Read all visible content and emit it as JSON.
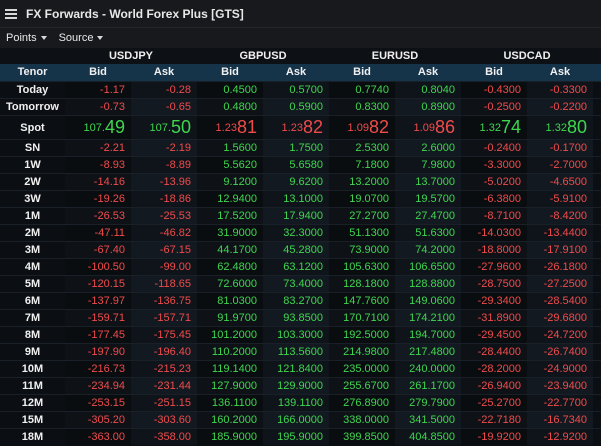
{
  "window": {
    "title": "FX Forwards - World Forex Plus [GTS]"
  },
  "menu": {
    "points_label": "Points",
    "source_label": "Source"
  },
  "pairs": [
    "USDJPY",
    "GBPUSD",
    "EURUSD",
    "USDCAD"
  ],
  "subheader": {
    "tenor": "Tenor",
    "bid": "Bid",
    "ask": "Ask"
  },
  "colors": {
    "positive": "#3fd64f",
    "negative": "#f04b4b",
    "header_bg": "#15344a"
  },
  "spot": {
    "tenor": "Spot",
    "values": [
      {
        "pre": "107.",
        "big": "49"
      },
      {
        "pre": "107.",
        "big": "50"
      },
      {
        "pre": "1.23",
        "big": "81"
      },
      {
        "pre": "1.23",
        "big": "82"
      },
      {
        "pre": "1.09",
        "big": "82"
      },
      {
        "pre": "1.09",
        "big": "86"
      },
      {
        "pre": "1.32",
        "big": "74"
      },
      {
        "pre": "1.32",
        "big": "80"
      }
    ],
    "colors": [
      "pos",
      "pos",
      "neg",
      "neg",
      "neg",
      "neg",
      "pos",
      "pos"
    ]
  },
  "rows": [
    {
      "tenor": "Today",
      "values": [
        "-1.17",
        "-0.28",
        "0.4500",
        "0.5700",
        "0.7740",
        "0.8040",
        "-0.4300",
        "-0.3300"
      ]
    },
    {
      "tenor": "Tomorrow",
      "values": [
        "-0.73",
        "-0.65",
        "0.4800",
        "0.5900",
        "0.8300",
        "0.8900",
        "-0.2500",
        "-0.2200"
      ]
    },
    {
      "tenor": "SN",
      "values": [
        "-2.21",
        "-2.19",
        "1.5600",
        "1.7500",
        "2.5300",
        "2.6000",
        "-0.2400",
        "-0.1700"
      ]
    },
    {
      "tenor": "1W",
      "values": [
        "-8.93",
        "-8.89",
        "5.5620",
        "5.6580",
        "7.1800",
        "7.9800",
        "-3.3000",
        "-2.7000"
      ]
    },
    {
      "tenor": "2W",
      "values": [
        "-14.16",
        "-13.96",
        "9.1200",
        "9.6200",
        "13.2000",
        "13.7000",
        "-5.0200",
        "-4.6500"
      ]
    },
    {
      "tenor": "3W",
      "values": [
        "-19.26",
        "-18.86",
        "12.9400",
        "13.1000",
        "19.0700",
        "19.5700",
        "-6.3800",
        "-5.9100"
      ]
    },
    {
      "tenor": "1M",
      "values": [
        "-26.53",
        "-25.53",
        "17.5200",
        "17.9400",
        "27.2700",
        "27.4700",
        "-8.7100",
        "-8.4200"
      ]
    },
    {
      "tenor": "2M",
      "values": [
        "-47.11",
        "-46.82",
        "31.9000",
        "32.3000",
        "51.1300",
        "51.6300",
        "-14.0300",
        "-13.4400"
      ]
    },
    {
      "tenor": "3M",
      "values": [
        "-67.40",
        "-67.15",
        "44.1700",
        "45.2800",
        "73.9000",
        "74.2000",
        "-18.8000",
        "-17.9100"
      ]
    },
    {
      "tenor": "4M",
      "values": [
        "-100.50",
        "-99.00",
        "62.4800",
        "63.1200",
        "105.6300",
        "106.6500",
        "-27.9600",
        "-26.1800"
      ]
    },
    {
      "tenor": "5M",
      "values": [
        "-120.15",
        "-118.65",
        "72.6000",
        "73.4000",
        "128.1800",
        "128.8800",
        "-28.7500",
        "-27.2500"
      ]
    },
    {
      "tenor": "6M",
      "values": [
        "-137.97",
        "-136.75",
        "81.0300",
        "83.2700",
        "147.7600",
        "149.0600",
        "-29.3400",
        "-28.5400"
      ]
    },
    {
      "tenor": "7M",
      "values": [
        "-159.71",
        "-157.71",
        "91.9700",
        "93.8500",
        "170.7100",
        "174.2100",
        "-31.8900",
        "-29.6800"
      ]
    },
    {
      "tenor": "8M",
      "values": [
        "-177.45",
        "-175.45",
        "101.2000",
        "103.3000",
        "192.5000",
        "194.7000",
        "-29.4500",
        "-24.7200"
      ]
    },
    {
      "tenor": "9M",
      "values": [
        "-197.90",
        "-196.40",
        "110.2000",
        "113.5600",
        "214.9800",
        "217.4800",
        "-28.4400",
        "-26.7400"
      ]
    },
    {
      "tenor": "10M",
      "values": [
        "-216.73",
        "-215.23",
        "119.1400",
        "121.8400",
        "235.0000",
        "240.0000",
        "-28.2000",
        "-24.9000"
      ]
    },
    {
      "tenor": "11M",
      "values": [
        "-234.94",
        "-231.44",
        "127.9000",
        "129.9000",
        "255.6700",
        "261.1700",
        "-26.9400",
        "-23.9400"
      ]
    },
    {
      "tenor": "12M",
      "values": [
        "-253.15",
        "-251.15",
        "136.1100",
        "139.1100",
        "276.8900",
        "279.7900",
        "-25.2700",
        "-22.7700"
      ]
    },
    {
      "tenor": "15M",
      "values": [
        "-305.20",
        "-303.60",
        "160.2000",
        "166.0000",
        "338.0000",
        "341.5000",
        "-22.7180",
        "-16.7340"
      ]
    },
    {
      "tenor": "18M",
      "values": [
        "-363.00",
        "-358.00",
        "185.9000",
        "195.9000",
        "399.8500",
        "404.8500",
        "-19.9200",
        "-12.9200"
      ]
    }
  ]
}
